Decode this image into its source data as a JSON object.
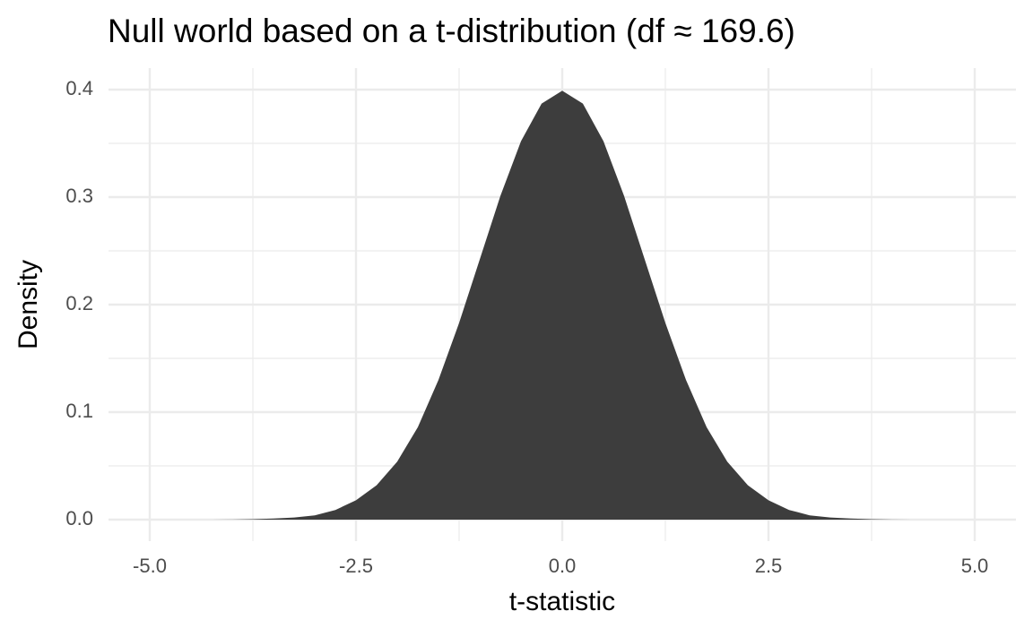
{
  "chart_data": {
    "type": "area",
    "title": "Null world based on a t-distribution (df ≈ 169.6)",
    "x_label": "t-statistic",
    "y_label": "Density",
    "x": [
      -5,
      -4.75,
      -4.5,
      -4.25,
      -4,
      -3.75,
      -3.5,
      -3.25,
      -3,
      -2.75,
      -2.5,
      -2.25,
      -2,
      -1.75,
      -1.5,
      -1.25,
      -1,
      -0.75,
      -0.5,
      -0.25,
      0,
      0.25,
      0.5,
      0.75,
      1,
      1.25,
      1.5,
      1.75,
      2,
      2.25,
      2.5,
      2.75,
      3,
      3.25,
      3.5,
      3.75,
      4,
      4.25,
      4.5,
      4.75,
      5
    ],
    "values": [
      0,
      0,
      0,
      0,
      0.0001,
      0.0004,
      0.001,
      0.002,
      0.004,
      0.009,
      0.018,
      0.032,
      0.054,
      0.086,
      0.13,
      0.183,
      0.242,
      0.301,
      0.352,
      0.387,
      0.399,
      0.387,
      0.352,
      0.301,
      0.242,
      0.183,
      0.13,
      0.086,
      0.054,
      0.032,
      0.018,
      0.009,
      0.004,
      0.002,
      0.001,
      0.0004,
      0.0001,
      0,
      0,
      0,
      0
    ],
    "color": "#3d3d3d",
    "xlim": [
      -5.5,
      5.5
    ],
    "ylim": [
      -0.02,
      0.42
    ],
    "xticks": [
      {
        "value": -5,
        "label": "-5.0"
      },
      -2.5,
      {
        "value": 0,
        "label": "0.0"
      },
      2.5,
      {
        "value": 5,
        "label": "5.0"
      }
    ],
    "yticks": [
      {
        "value": 0,
        "label": "0.0"
      },
      0.1,
      0.2,
      0.3,
      0.4
    ],
    "xminor": [
      -3.75,
      -1.25,
      1.25,
      3.75
    ],
    "yminor": [
      0.05,
      0.15,
      0.25,
      0.35
    ],
    "grid": true
  }
}
